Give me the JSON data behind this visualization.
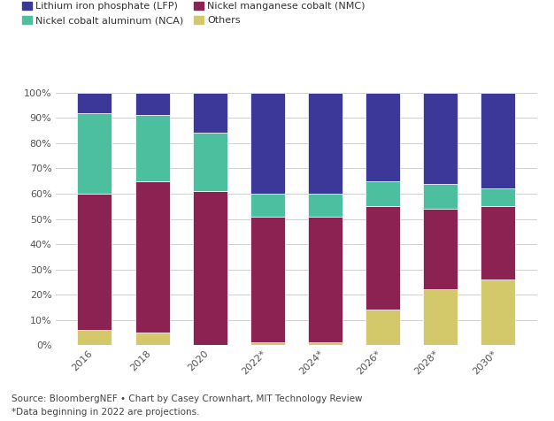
{
  "categories": [
    "2016",
    "2018",
    "2020",
    "2022*",
    "2024*",
    "2026*",
    "2028*",
    "2030*"
  ],
  "series": {
    "Others": [
      6,
      5,
      0,
      1,
      1,
      14,
      22,
      26
    ],
    "NMC": [
      54,
      60,
      61,
      50,
      50,
      41,
      32,
      29
    ],
    "NCA": [
      32,
      26,
      23,
      9,
      9,
      10,
      10,
      7
    ],
    "LFP": [
      8,
      9,
      16,
      40,
      40,
      35,
      36,
      38
    ]
  },
  "colors": {
    "Others": "#d4c96a",
    "NMC": "#8b2252",
    "NCA": "#4bbf9e",
    "LFP": "#3b3899"
  },
  "legend_labels": {
    "LFP": "Lithium iron phosphate (LFP)",
    "NCA": "Nickel cobalt aluminum (NCA)",
    "NMC": "Nickel manganese cobalt (NMC)",
    "Others": "Others"
  },
  "ylabel_ticks": [
    "0%",
    "10%",
    "20%",
    "30%",
    "40%",
    "50%",
    "60%",
    "70%",
    "80%",
    "90%",
    "100%"
  ],
  "source_text": "Source: BloombergNEF • Chart by Casey Crownhart, MIT Technology Review\n*Data beginning in 2022 are projections.",
  "background_color": "#ffffff",
  "grid_color": "#d0d0d0",
  "bar_width": 0.6
}
